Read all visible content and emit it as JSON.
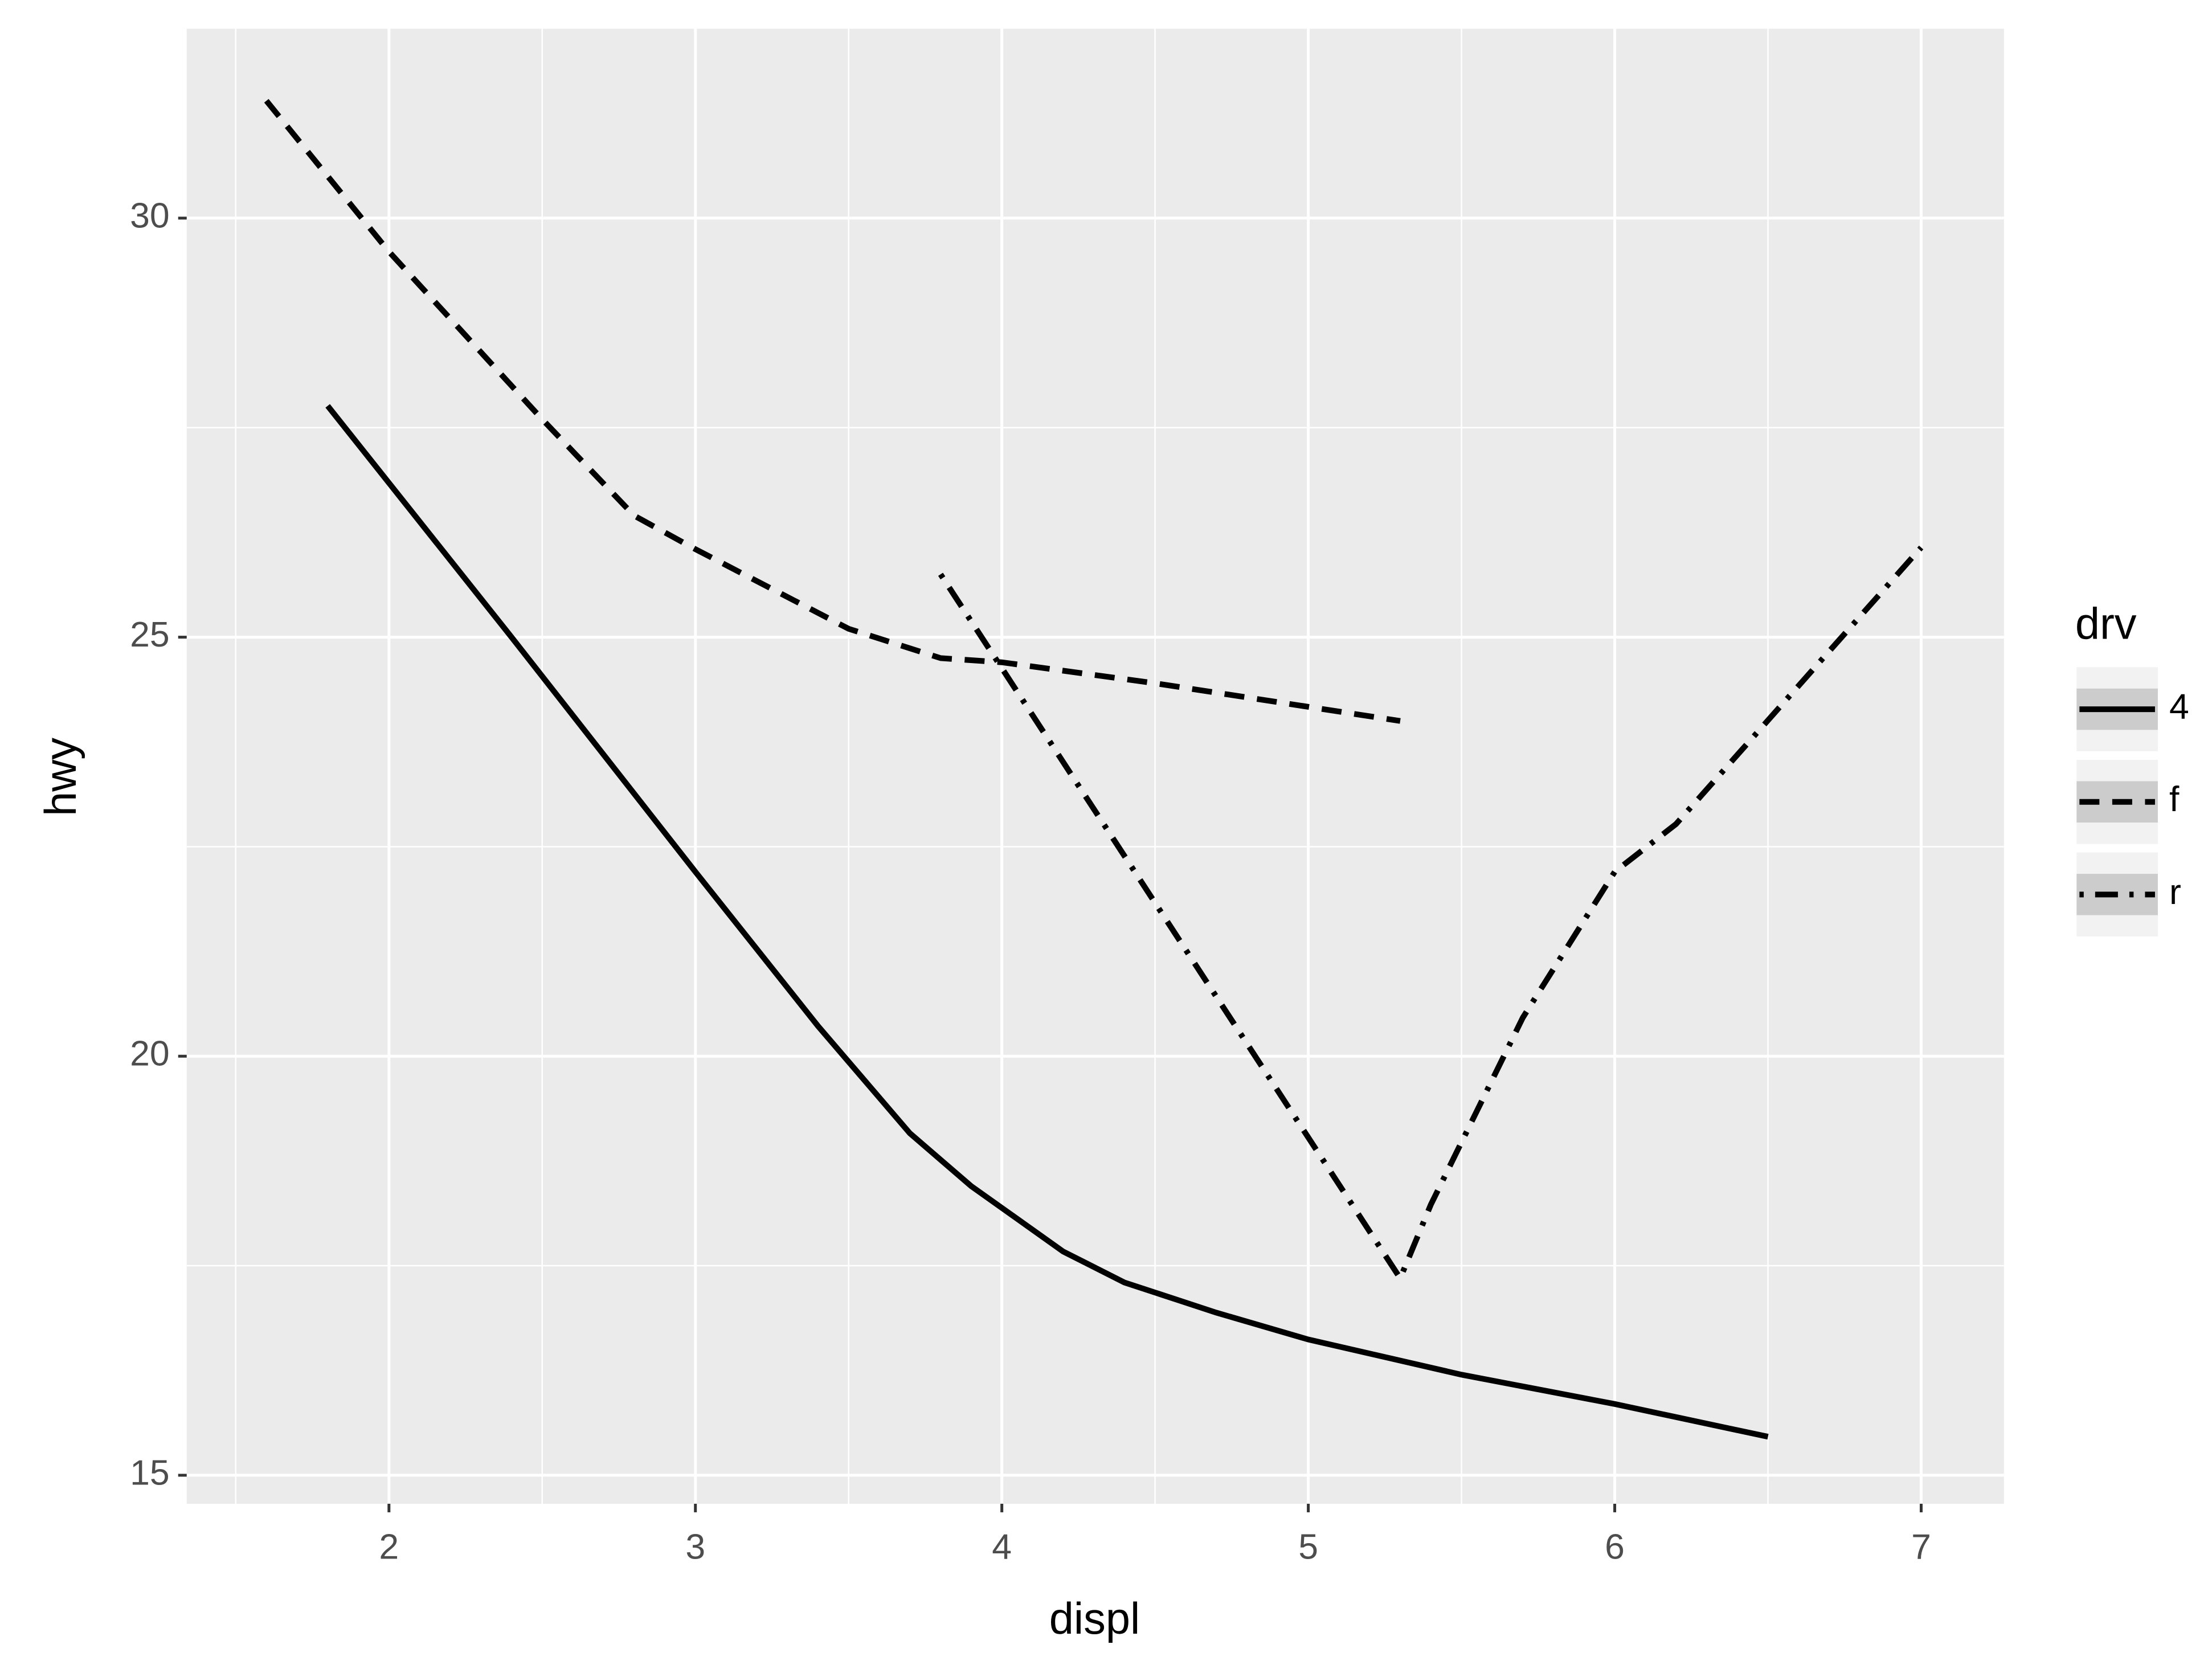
{
  "chart_data": {
    "type": "line",
    "x_label": "displ",
    "y_label": "hwy",
    "legend_title": "drv",
    "xlim": [
      1.34,
      7.27
    ],
    "ylim": [
      14.66,
      32.26
    ],
    "xticks": [
      2,
      3,
      4,
      5,
      6,
      7
    ],
    "yticks": [
      15,
      20,
      25,
      30
    ],
    "xminor": [
      1.5,
      2.5,
      3.5,
      4.5,
      5.5,
      6.5
    ],
    "yminor": [
      17.5,
      22.5,
      27.5
    ],
    "grid": true,
    "legend_position": "right",
    "series": [
      {
        "name": "4",
        "color": "#000000",
        "linetype": "solid",
        "x": [
          1.8,
          2.4,
          3.0,
          3.4,
          3.7,
          3.9,
          4.2,
          4.4,
          4.7,
          5.0,
          5.5,
          6.0,
          6.5
        ],
        "values": [
          27.76,
          25.0,
          22.2,
          20.36,
          19.08,
          18.45,
          17.67,
          17.3,
          16.94,
          16.62,
          16.2,
          15.85,
          15.46
        ]
      },
      {
        "name": "f",
        "color": "#000000",
        "linetype": "dashed",
        "x": [
          1.6,
          2.0,
          2.5,
          2.8,
          3.0,
          3.5,
          3.8,
          4.0,
          4.5,
          5.3
        ],
        "values": [
          31.4,
          29.6,
          27.6,
          26.45,
          26.05,
          25.1,
          24.75,
          24.7,
          24.45,
          24.0
        ]
      },
      {
        "name": "r",
        "color": "#000000",
        "linetype": "dotdash",
        "x": [
          3.8,
          5.3,
          5.4,
          5.7,
          6.0,
          6.2,
          7.0
        ],
        "values": [
          25.75,
          17.35,
          18.23,
          20.46,
          22.2,
          22.77,
          26.07
        ]
      }
    ]
  }
}
